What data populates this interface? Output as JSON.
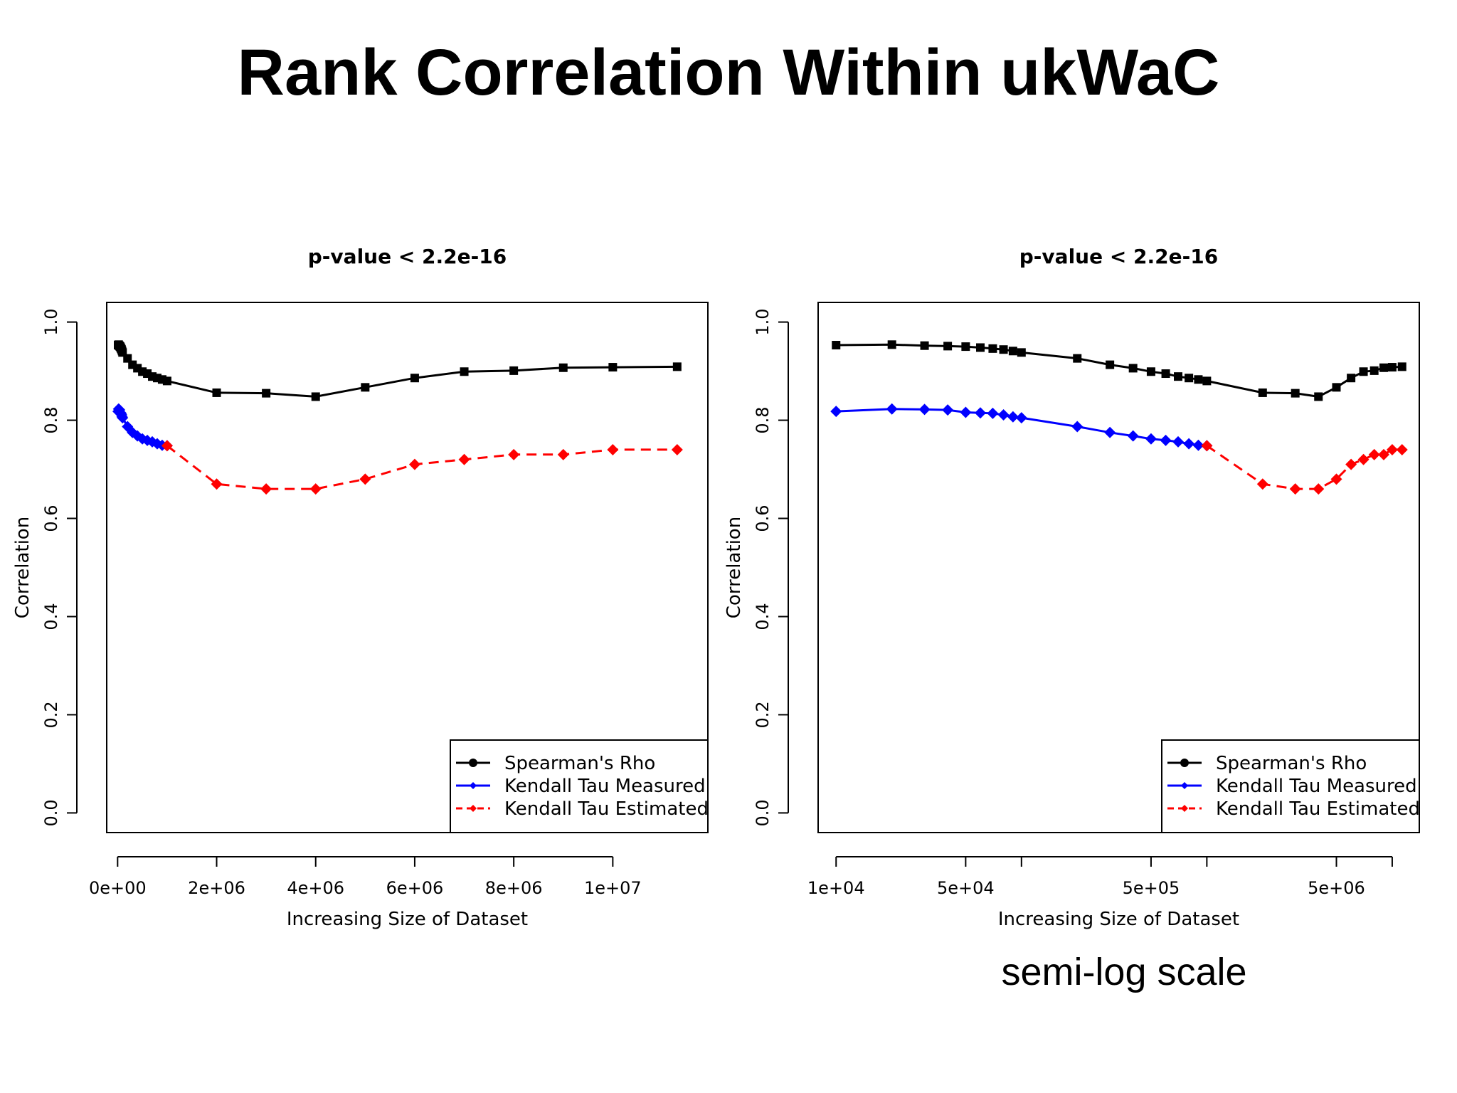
{
  "slide": {
    "title": "Rank Correlation Within ukWaC",
    "caption": "semi-log scale"
  },
  "chart_data": [
    {
      "type": "line",
      "title": "p-value < 2.2e-16",
      "xlabel": "Increasing Size of Dataset",
      "ylabel": "Correlation",
      "x_scale": "linear",
      "xlim": [
        -220000,
        11920000
      ],
      "ylim": [
        -0.04,
        1.04
      ],
      "x_ticks": [
        0,
        2000000,
        4000000,
        6000000,
        8000000,
        10000000
      ],
      "x_tick_labels": [
        "0e+00",
        "2e+06",
        "4e+06",
        "6e+06",
        "8e+06",
        "1e+07"
      ],
      "y_ticks": [
        0,
        0.2,
        0.4,
        0.6,
        0.8,
        1.0
      ],
      "y_tick_labels": [
        "0.0",
        "0.2",
        "0.4",
        "0.6",
        "0.8",
        "1.0"
      ],
      "legend_position": "bottom-right",
      "series": [
        {
          "name": "Spearman's Rho",
          "color": "#000000",
          "dash": "solid",
          "marker": "square",
          "x": [
            10000,
            20000,
            30000,
            40000,
            50000,
            60000,
            70000,
            80000,
            90000,
            100000,
            200000,
            300000,
            400000,
            500000,
            600000,
            700000,
            800000,
            900000,
            1000000,
            2000000,
            3000000,
            4000000,
            5000000,
            6000000,
            7000000,
            8000000,
            9000000,
            10000000,
            11300000
          ],
          "y": [
            0.953,
            0.954,
            0.952,
            0.951,
            0.95,
            0.948,
            0.946,
            0.944,
            0.941,
            0.938,
            0.926,
            0.913,
            0.906,
            0.899,
            0.895,
            0.889,
            0.886,
            0.883,
            0.88,
            0.856,
            0.855,
            0.848,
            0.867,
            0.886,
            0.899,
            0.901,
            0.907,
            0.908,
            0.909
          ]
        },
        {
          "name": "Kendall Tau Measured",
          "color": "#0000ff",
          "dash": "solid",
          "marker": "diamond",
          "x": [
            10000,
            20000,
            30000,
            40000,
            50000,
            60000,
            70000,
            80000,
            90000,
            100000,
            200000,
            300000,
            400000,
            500000,
            600000,
            700000,
            800000,
            900000,
            1000000
          ],
          "y": [
            0.818,
            0.823,
            0.822,
            0.821,
            0.816,
            0.815,
            0.814,
            0.811,
            0.807,
            0.805,
            0.787,
            0.775,
            0.768,
            0.762,
            0.759,
            0.756,
            0.752,
            0.749,
            0.748
          ]
        },
        {
          "name": "Kendall Tau Estimated",
          "color": "#ff0000",
          "dash": "dashed",
          "marker": "diamond",
          "x": [
            1000000,
            2000000,
            3000000,
            4000000,
            5000000,
            6000000,
            7000000,
            8000000,
            9000000,
            10000000,
            11300000
          ],
          "y": [
            0.748,
            0.67,
            0.66,
            0.66,
            0.68,
            0.71,
            0.72,
            0.73,
            0.73,
            0.74,
            0.74
          ]
        }
      ]
    },
    {
      "type": "line",
      "title": "p-value < 2.2e-16",
      "xlabel": "Increasing Size of Dataset",
      "ylabel": "Correlation",
      "x_scale": "log",
      "xlim": [
        8000,
        14000000
      ],
      "ylim": [
        -0.04,
        1.04
      ],
      "x_ticks": [
        10000,
        50000,
        100000,
        500000,
        1000000,
        5000000,
        10000000
      ],
      "x_tick_labels": [
        "1e+04",
        "5e+04",
        "",
        "5e+05",
        "",
        "5e+06",
        ""
      ],
      "y_ticks": [
        0,
        0.2,
        0.4,
        0.6,
        0.8,
        1.0
      ],
      "y_tick_labels": [
        "0.0",
        "0.2",
        "0.4",
        "0.6",
        "0.8",
        "1.0"
      ],
      "legend_position": "bottom-right",
      "series": [
        {
          "name": "Spearman's Rho",
          "color": "#000000",
          "dash": "solid",
          "marker": "square",
          "x": [
            10000,
            20000,
            30000,
            40000,
            50000,
            60000,
            70000,
            80000,
            90000,
            100000,
            200000,
            300000,
            400000,
            500000,
            600000,
            700000,
            800000,
            900000,
            1000000,
            2000000,
            3000000,
            4000000,
            5000000,
            6000000,
            7000000,
            8000000,
            9000000,
            10000000,
            11300000
          ],
          "y": [
            0.953,
            0.954,
            0.952,
            0.951,
            0.95,
            0.948,
            0.946,
            0.944,
            0.941,
            0.938,
            0.926,
            0.913,
            0.906,
            0.899,
            0.895,
            0.889,
            0.886,
            0.883,
            0.88,
            0.856,
            0.855,
            0.848,
            0.867,
            0.886,
            0.899,
            0.901,
            0.907,
            0.908,
            0.909
          ]
        },
        {
          "name": "Kendall Tau Measured",
          "color": "#0000ff",
          "dash": "solid",
          "marker": "diamond",
          "x": [
            10000,
            20000,
            30000,
            40000,
            50000,
            60000,
            70000,
            80000,
            90000,
            100000,
            200000,
            300000,
            400000,
            500000,
            600000,
            700000,
            800000,
            900000,
            1000000
          ],
          "y": [
            0.818,
            0.823,
            0.822,
            0.821,
            0.816,
            0.815,
            0.814,
            0.811,
            0.807,
            0.805,
            0.787,
            0.775,
            0.768,
            0.762,
            0.759,
            0.756,
            0.752,
            0.749,
            0.748
          ]
        },
        {
          "name": "Kendall Tau Estimated",
          "color": "#ff0000",
          "dash": "dashed",
          "marker": "diamond",
          "x": [
            1000000,
            2000000,
            3000000,
            4000000,
            5000000,
            6000000,
            7000000,
            8000000,
            9000000,
            10000000,
            11300000
          ],
          "y": [
            0.748,
            0.67,
            0.66,
            0.66,
            0.68,
            0.71,
            0.72,
            0.73,
            0.73,
            0.74,
            0.74
          ]
        }
      ]
    }
  ]
}
